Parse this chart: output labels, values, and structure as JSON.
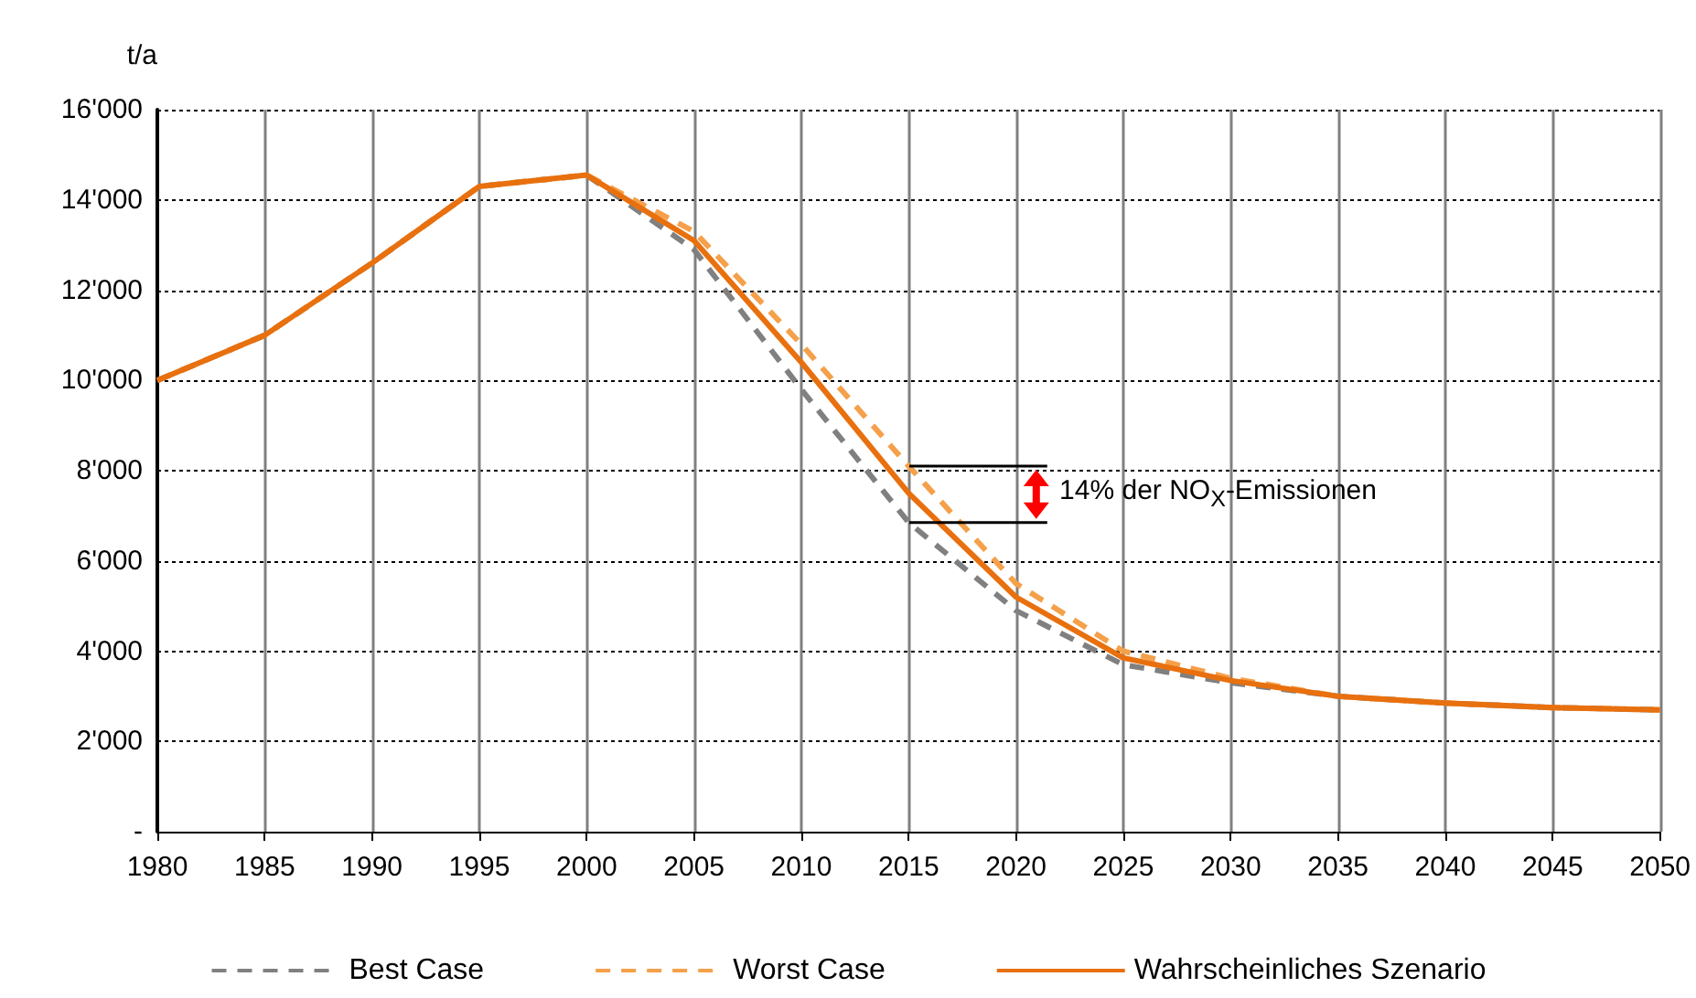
{
  "chart_data": {
    "type": "line",
    "ylabel": "t/a",
    "x": [
      1980,
      1985,
      1990,
      1995,
      2000,
      2005,
      2010,
      2015,
      2020,
      2025,
      2030,
      2035,
      2040,
      2045,
      2050
    ],
    "series": [
      {
        "name": "Best Case",
        "color": "#808080",
        "line_style": "dashed",
        "values": [
          10000,
          11000,
          12600,
          14300,
          14550,
          12900,
          9800,
          6850,
          4900,
          3700,
          3300,
          3000,
          2850,
          2750,
          2700
        ]
      },
      {
        "name": "Worst Case",
        "color": "#f5a04a",
        "line_style": "dashed",
        "values": [
          10000,
          11000,
          12600,
          14300,
          14550,
          13300,
          10800,
          8100,
          5500,
          4000,
          3400,
          3000,
          2850,
          2750,
          2700
        ]
      },
      {
        "name": "Wahrscheinliches Szenario",
        "color": "#e8700e",
        "line_style": "solid",
        "values": [
          10000,
          11000,
          12600,
          14300,
          14550,
          13100,
          10400,
          7500,
          5200,
          3850,
          3350,
          3000,
          2850,
          2750,
          2700
        ]
      }
    ],
    "xlim": [
      1980,
      2050
    ],
    "xticks": [
      1980,
      1985,
      1990,
      1995,
      2000,
      2005,
      2010,
      2015,
      2020,
      2025,
      2030,
      2035,
      2040,
      2045,
      2050
    ],
    "ylim": [
      0,
      16000
    ],
    "yticks": [
      {
        "value": 0,
        "label": "-"
      },
      {
        "value": 2000,
        "label": "2'000"
      },
      {
        "value": 4000,
        "label": "4'000"
      },
      {
        "value": 6000,
        "label": "6'000"
      },
      {
        "value": 8000,
        "label": "8'000"
      },
      {
        "value": 10000,
        "label": "10'000"
      },
      {
        "value": 12000,
        "label": "12'000"
      },
      {
        "value": 14000,
        "label": "14'000"
      },
      {
        "value": 16000,
        "label": "16'000"
      }
    ],
    "annotations": [
      {
        "text": "14% der NO$_{X}$-Emissionen",
        "x": 2021,
        "y": 7475
      }
    ],
    "grid": true,
    "legend": "bottom",
    "marker": "none"
  }
}
